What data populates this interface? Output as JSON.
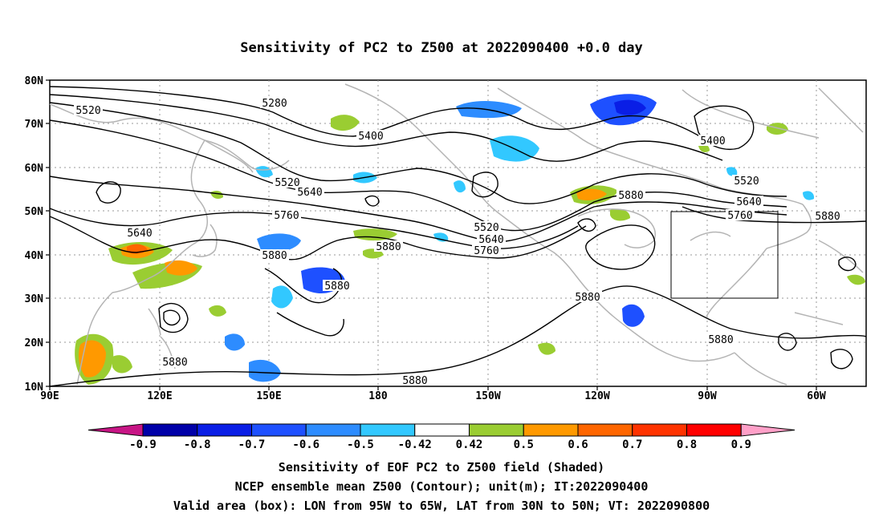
{
  "title": "Sensitivity of PC2 to Z500 at 2022090400 +0.0 day",
  "lat_labels": [
    "80N",
    "70N",
    "60N",
    "50N",
    "40N",
    "30N",
    "20N",
    "10N"
  ],
  "lon_labels": [
    "90E",
    "120E",
    "150E",
    "180",
    "150W",
    "120W",
    "90W",
    "60W"
  ],
  "contour_labels": [
    "5520",
    "5280",
    "5400",
    "5520",
    "5640",
    "5760",
    "5640",
    "5880",
    "5880",
    "5880",
    "5520",
    "5640",
    "5760",
    "5880",
    "5400",
    "5520",
    "5640",
    "5760",
    "5880",
    "5880",
    "5880",
    "5880",
    "5880"
  ],
  "colorbar": {
    "tick_labels": [
      "-0.9",
      "-0.8",
      "-0.7",
      "-0.6",
      "-0.5",
      "-0.42",
      "0.42",
      "0.5",
      "0.6",
      "0.7",
      "0.8",
      "0.9"
    ],
    "colors": [
      "#c71585",
      "#0000a8",
      "#0a1ee6",
      "#1e50ff",
      "#2d8cff",
      "#32c8ff",
      "#ffffff",
      "#9acd32",
      "#ff9900",
      "#ff6600",
      "#ff3300",
      "#ff0000",
      "#ffa0c8"
    ]
  },
  "footer": {
    "line1": "Sensitivity of EOF PC2 to Z500 field (Shaded)",
    "line2": "NCEP ensemble mean Z500 (Contour); unit(m); IT:2022090400",
    "line3": "Valid area (box): LON from 95W to 65W, LAT from 30N to 50N; VT: 2022090800"
  },
  "map_colors": {
    "coastline": "#b4b4b4",
    "contour": "#000000",
    "grid": "#9a9a9a"
  }
}
